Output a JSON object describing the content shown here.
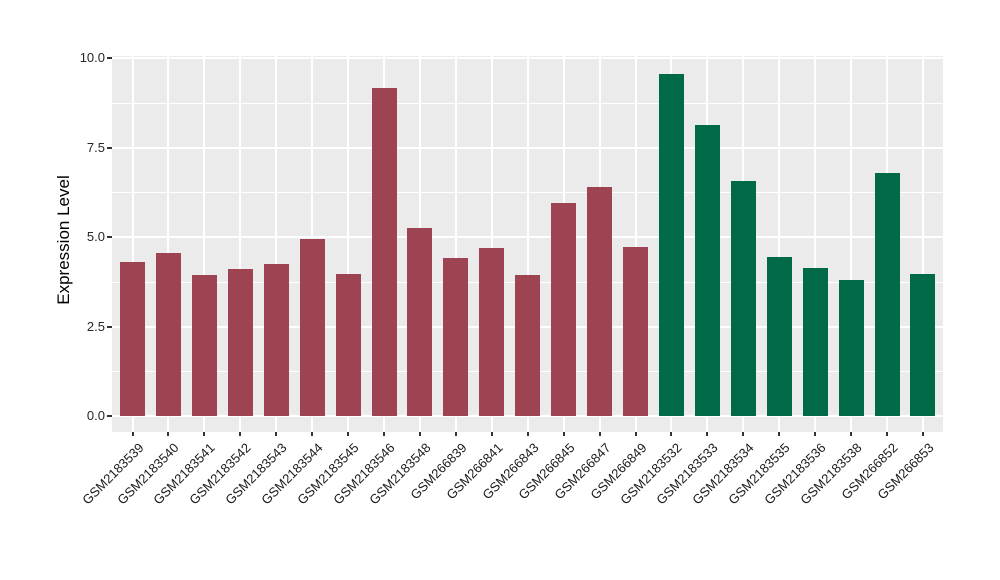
{
  "chart_data": {
    "type": "bar",
    "title": "",
    "xlabel": "",
    "ylabel": "Expression Level",
    "ylim": [
      0,
      10.05
    ],
    "yticks": [
      0,
      2.5,
      5,
      7.5,
      10
    ],
    "ytick_labels": [
      "0.0",
      "2.5",
      "5.0",
      "7.5",
      "10.0"
    ],
    "yticks_minor": [
      1.25,
      3.75,
      6.25,
      8.75
    ],
    "grid": "on",
    "legend_position": "none",
    "x_tick_rotation_deg": 45,
    "categories": [
      "GSM2183539",
      "GSM2183540",
      "GSM2183541",
      "GSM2183542",
      "GSM2183543",
      "GSM2183544",
      "GSM2183545",
      "GSM2183546",
      "GSM2183548",
      "GSM266839",
      "GSM266841",
      "GSM266843",
      "GSM266845",
      "GSM266847",
      "GSM266849",
      "GSM2183532",
      "GSM2183533",
      "GSM2183534",
      "GSM2183535",
      "GSM2183536",
      "GSM2183538",
      "GSM266852",
      "GSM266853"
    ],
    "values": [
      4.3,
      4.55,
      3.95,
      4.1,
      4.25,
      4.95,
      3.97,
      9.15,
      5.25,
      4.4,
      4.7,
      3.93,
      5.95,
      6.4,
      4.72,
      9.55,
      8.12,
      6.57,
      4.45,
      4.14,
      3.81,
      6.8,
      3.96
    ],
    "bar_colors": [
      "#9E4352",
      "#9E4352",
      "#9E4352",
      "#9E4352",
      "#9E4352",
      "#9E4352",
      "#9E4352",
      "#9E4352",
      "#9E4352",
      "#9E4352",
      "#9E4352",
      "#9E4352",
      "#9E4352",
      "#9E4352",
      "#9E4352",
      "#006A48",
      "#006A48",
      "#006A48",
      "#006A48",
      "#006A48",
      "#006A48",
      "#006A48",
      "#006A48"
    ],
    "colors": {
      "group_red": "#9E4352",
      "group_green": "#006A48",
      "panel_background": "#EBEBEB",
      "gridline": "#FFFFFF",
      "figure_background": "#FFFFFF",
      "tick_text": "#1A1A1A"
    }
  }
}
